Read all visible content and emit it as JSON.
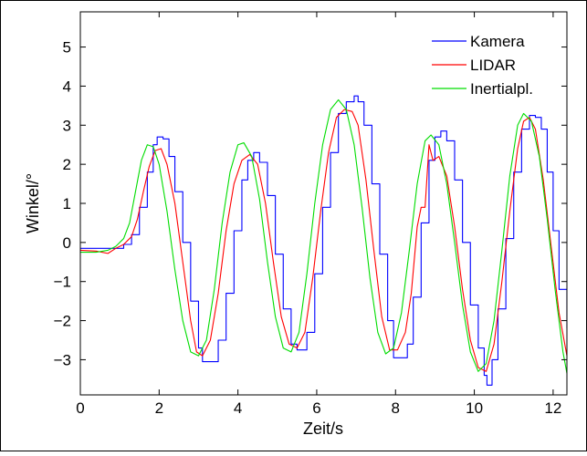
{
  "chart_data": {
    "type": "line",
    "title": "",
    "xlabel": "Zeit/s",
    "ylabel": "Winkel/°",
    "xlim": [
      0,
      12.35
    ],
    "ylim": [
      -3.9,
      5.9
    ],
    "x_ticks": [
      0,
      2,
      4,
      6,
      8,
      10,
      12
    ],
    "y_ticks": [
      -3,
      -2,
      -1,
      0,
      1,
      2,
      3,
      4,
      5
    ],
    "x_tick_labels": [
      "0",
      "2",
      "4",
      "6",
      "8",
      "10",
      "12"
    ],
    "y_tick_labels": [
      "−3",
      "−2",
      "−1",
      "0",
      "1",
      "2",
      "3",
      "4",
      "5"
    ],
    "grid": false,
    "legend_position": "top-right",
    "series": [
      {
        "name": "Kamera",
        "color": "#0000ff",
        "stepped": true,
        "points": [
          [
            0,
            -0.15
          ],
          [
            0.6,
            -0.15
          ],
          [
            0.9,
            -0.15
          ],
          [
            1.1,
            -0.05
          ],
          [
            1.3,
            0.2
          ],
          [
            1.5,
            0.9
          ],
          [
            1.7,
            1.8
          ],
          [
            1.85,
            2.5
          ],
          [
            1.95,
            2.7
          ],
          [
            2.1,
            2.65
          ],
          [
            2.25,
            2.2
          ],
          [
            2.4,
            1.3
          ],
          [
            2.6,
            0
          ],
          [
            2.8,
            -1.5
          ],
          [
            3.0,
            -2.7
          ],
          [
            3.1,
            -3.05
          ],
          [
            3.3,
            -3.05
          ],
          [
            3.5,
            -2.5
          ],
          [
            3.7,
            -1.3
          ],
          [
            3.9,
            0.3
          ],
          [
            4.1,
            1.6
          ],
          [
            4.25,
            2.1
          ],
          [
            4.4,
            2.3
          ],
          [
            4.55,
            2.05
          ],
          [
            4.75,
            1.2
          ],
          [
            4.95,
            -0.3
          ],
          [
            5.15,
            -1.7
          ],
          [
            5.35,
            -2.6
          ],
          [
            5.5,
            -2.75
          ],
          [
            5.75,
            -2.3
          ],
          [
            5.95,
            -0.8
          ],
          [
            6.15,
            0.9
          ],
          [
            6.35,
            2.3
          ],
          [
            6.55,
            3.3
          ],
          [
            6.75,
            3.6
          ],
          [
            6.95,
            3.75
          ],
          [
            7.05,
            3.6
          ],
          [
            7.2,
            3.0
          ],
          [
            7.4,
            1.5
          ],
          [
            7.6,
            -0.3
          ],
          [
            7.8,
            -2.0
          ],
          [
            7.95,
            -2.95
          ],
          [
            8.1,
            -2.95
          ],
          [
            8.3,
            -2.6
          ],
          [
            8.45,
            -1.4
          ],
          [
            8.65,
            0.5
          ],
          [
            8.85,
            2.1
          ],
          [
            9.0,
            2.7
          ],
          [
            9.15,
            2.85
          ],
          [
            9.3,
            2.6
          ],
          [
            9.5,
            1.6
          ],
          [
            9.7,
            0
          ],
          [
            9.9,
            -1.6
          ],
          [
            10.1,
            -2.7
          ],
          [
            10.25,
            -3.4
          ],
          [
            10.32,
            -3.65
          ],
          [
            10.45,
            -3.0
          ],
          [
            10.6,
            -1.7
          ],
          [
            10.8,
            0.1
          ],
          [
            11.0,
            1.8
          ],
          [
            11.2,
            2.9
          ],
          [
            11.4,
            3.25
          ],
          [
            11.55,
            3.2
          ],
          [
            11.7,
            2.9
          ],
          [
            11.85,
            1.8
          ],
          [
            12.0,
            0.3
          ],
          [
            12.15,
            -1.2
          ],
          [
            12.35,
            -2.2
          ]
        ]
      },
      {
        "name": "LIDAR",
        "color": "#ff0000",
        "stepped": false,
        "points": [
          [
            0,
            -0.2
          ],
          [
            0.4,
            -0.22
          ],
          [
            0.7,
            -0.28
          ],
          [
            0.9,
            -0.15
          ],
          [
            1.1,
            -0.05
          ],
          [
            1.3,
            0.15
          ],
          [
            1.45,
            0.6
          ],
          [
            1.6,
            1.3
          ],
          [
            1.75,
            1.95
          ],
          [
            1.9,
            2.35
          ],
          [
            2.05,
            2.4
          ],
          [
            2.2,
            2.0
          ],
          [
            2.4,
            1.0
          ],
          [
            2.6,
            -0.5
          ],
          [
            2.8,
            -2.0
          ],
          [
            2.95,
            -2.8
          ],
          [
            3.1,
            -2.9
          ],
          [
            3.3,
            -2.5
          ],
          [
            3.5,
            -1.3
          ],
          [
            3.7,
            0.3
          ],
          [
            3.9,
            1.5
          ],
          [
            4.1,
            2.1
          ],
          [
            4.3,
            2.25
          ],
          [
            4.5,
            2.0
          ],
          [
            4.7,
            1.0
          ],
          [
            4.9,
            -0.5
          ],
          [
            5.1,
            -1.9
          ],
          [
            5.3,
            -2.6
          ],
          [
            5.5,
            -2.7
          ],
          [
            5.7,
            -2.3
          ],
          [
            5.9,
            -0.9
          ],
          [
            6.1,
            0.8
          ],
          [
            6.3,
            2.3
          ],
          [
            6.5,
            3.2
          ],
          [
            6.7,
            3.4
          ],
          [
            6.9,
            3.35
          ],
          [
            7.05,
            3.0
          ],
          [
            7.25,
            1.6
          ],
          [
            7.45,
            -0.2
          ],
          [
            7.65,
            -1.9
          ],
          [
            7.85,
            -2.75
          ],
          [
            8.05,
            -2.75
          ],
          [
            8.25,
            -2.3
          ],
          [
            8.4,
            -1.3
          ],
          [
            8.55,
            0.4
          ],
          [
            8.65,
            0.9
          ],
          [
            8.75,
            0.9
          ],
          [
            8.85,
            2.5
          ],
          [
            8.95,
            2.1
          ],
          [
            9.1,
            2.2
          ],
          [
            9.3,
            1.7
          ],
          [
            9.5,
            0.4
          ],
          [
            9.7,
            -1.2
          ],
          [
            9.9,
            -2.5
          ],
          [
            10.1,
            -3.2
          ],
          [
            10.3,
            -3.3
          ],
          [
            10.5,
            -2.6
          ],
          [
            10.7,
            -1.0
          ],
          [
            10.9,
            0.8
          ],
          [
            11.1,
            2.4
          ],
          [
            11.25,
            3.1
          ],
          [
            11.4,
            3.2
          ],
          [
            11.55,
            2.9
          ],
          [
            11.75,
            1.6
          ],
          [
            11.95,
            -0.1
          ],
          [
            12.15,
            -1.8
          ],
          [
            12.35,
            -2.9
          ]
        ]
      },
      {
        "name": "Inertialpl.",
        "color": "#00dd00",
        "stepped": false,
        "points": [
          [
            0,
            -0.25
          ],
          [
            0.4,
            -0.25
          ],
          [
            0.7,
            -0.2
          ],
          [
            0.9,
            -0.1
          ],
          [
            1.1,
            0.1
          ],
          [
            1.25,
            0.5
          ],
          [
            1.4,
            1.3
          ],
          [
            1.55,
            2.1
          ],
          [
            1.7,
            2.5
          ],
          [
            1.85,
            2.45
          ],
          [
            2.0,
            2.0
          ],
          [
            2.2,
            0.8
          ],
          [
            2.4,
            -0.7
          ],
          [
            2.6,
            -2.0
          ],
          [
            2.8,
            -2.8
          ],
          [
            3.0,
            -2.9
          ],
          [
            3.2,
            -2.5
          ],
          [
            3.4,
            -1.2
          ],
          [
            3.6,
            0.5
          ],
          [
            3.8,
            1.8
          ],
          [
            4.0,
            2.5
          ],
          [
            4.15,
            2.55
          ],
          [
            4.35,
            2.2
          ],
          [
            4.55,
            1.1
          ],
          [
            4.75,
            -0.5
          ],
          [
            4.95,
            -1.9
          ],
          [
            5.15,
            -2.7
          ],
          [
            5.35,
            -2.8
          ],
          [
            5.55,
            -2.3
          ],
          [
            5.75,
            -0.8
          ],
          [
            5.95,
            1.0
          ],
          [
            6.15,
            2.5
          ],
          [
            6.35,
            3.4
          ],
          [
            6.55,
            3.65
          ],
          [
            6.75,
            3.4
          ],
          [
            6.95,
            2.5
          ],
          [
            7.15,
            0.9
          ],
          [
            7.35,
            -0.9
          ],
          [
            7.55,
            -2.3
          ],
          [
            7.75,
            -2.85
          ],
          [
            7.95,
            -2.7
          ],
          [
            8.15,
            -1.8
          ],
          [
            8.35,
            -0.2
          ],
          [
            8.55,
            1.5
          ],
          [
            8.75,
            2.6
          ],
          [
            8.9,
            2.75
          ],
          [
            9.1,
            2.5
          ],
          [
            9.3,
            1.5
          ],
          [
            9.5,
            0
          ],
          [
            9.7,
            -1.6
          ],
          [
            9.9,
            -2.8
          ],
          [
            10.1,
            -3.3
          ],
          [
            10.3,
            -3.1
          ],
          [
            10.5,
            -2.0
          ],
          [
            10.7,
            -0.2
          ],
          [
            10.9,
            1.7
          ],
          [
            11.1,
            3.0
          ],
          [
            11.25,
            3.3
          ],
          [
            11.45,
            3.1
          ],
          [
            11.65,
            2.2
          ],
          [
            11.85,
            0.6
          ],
          [
            12.05,
            -1.2
          ],
          [
            12.25,
            -2.8
          ],
          [
            12.35,
            -3.35
          ]
        ]
      }
    ]
  }
}
